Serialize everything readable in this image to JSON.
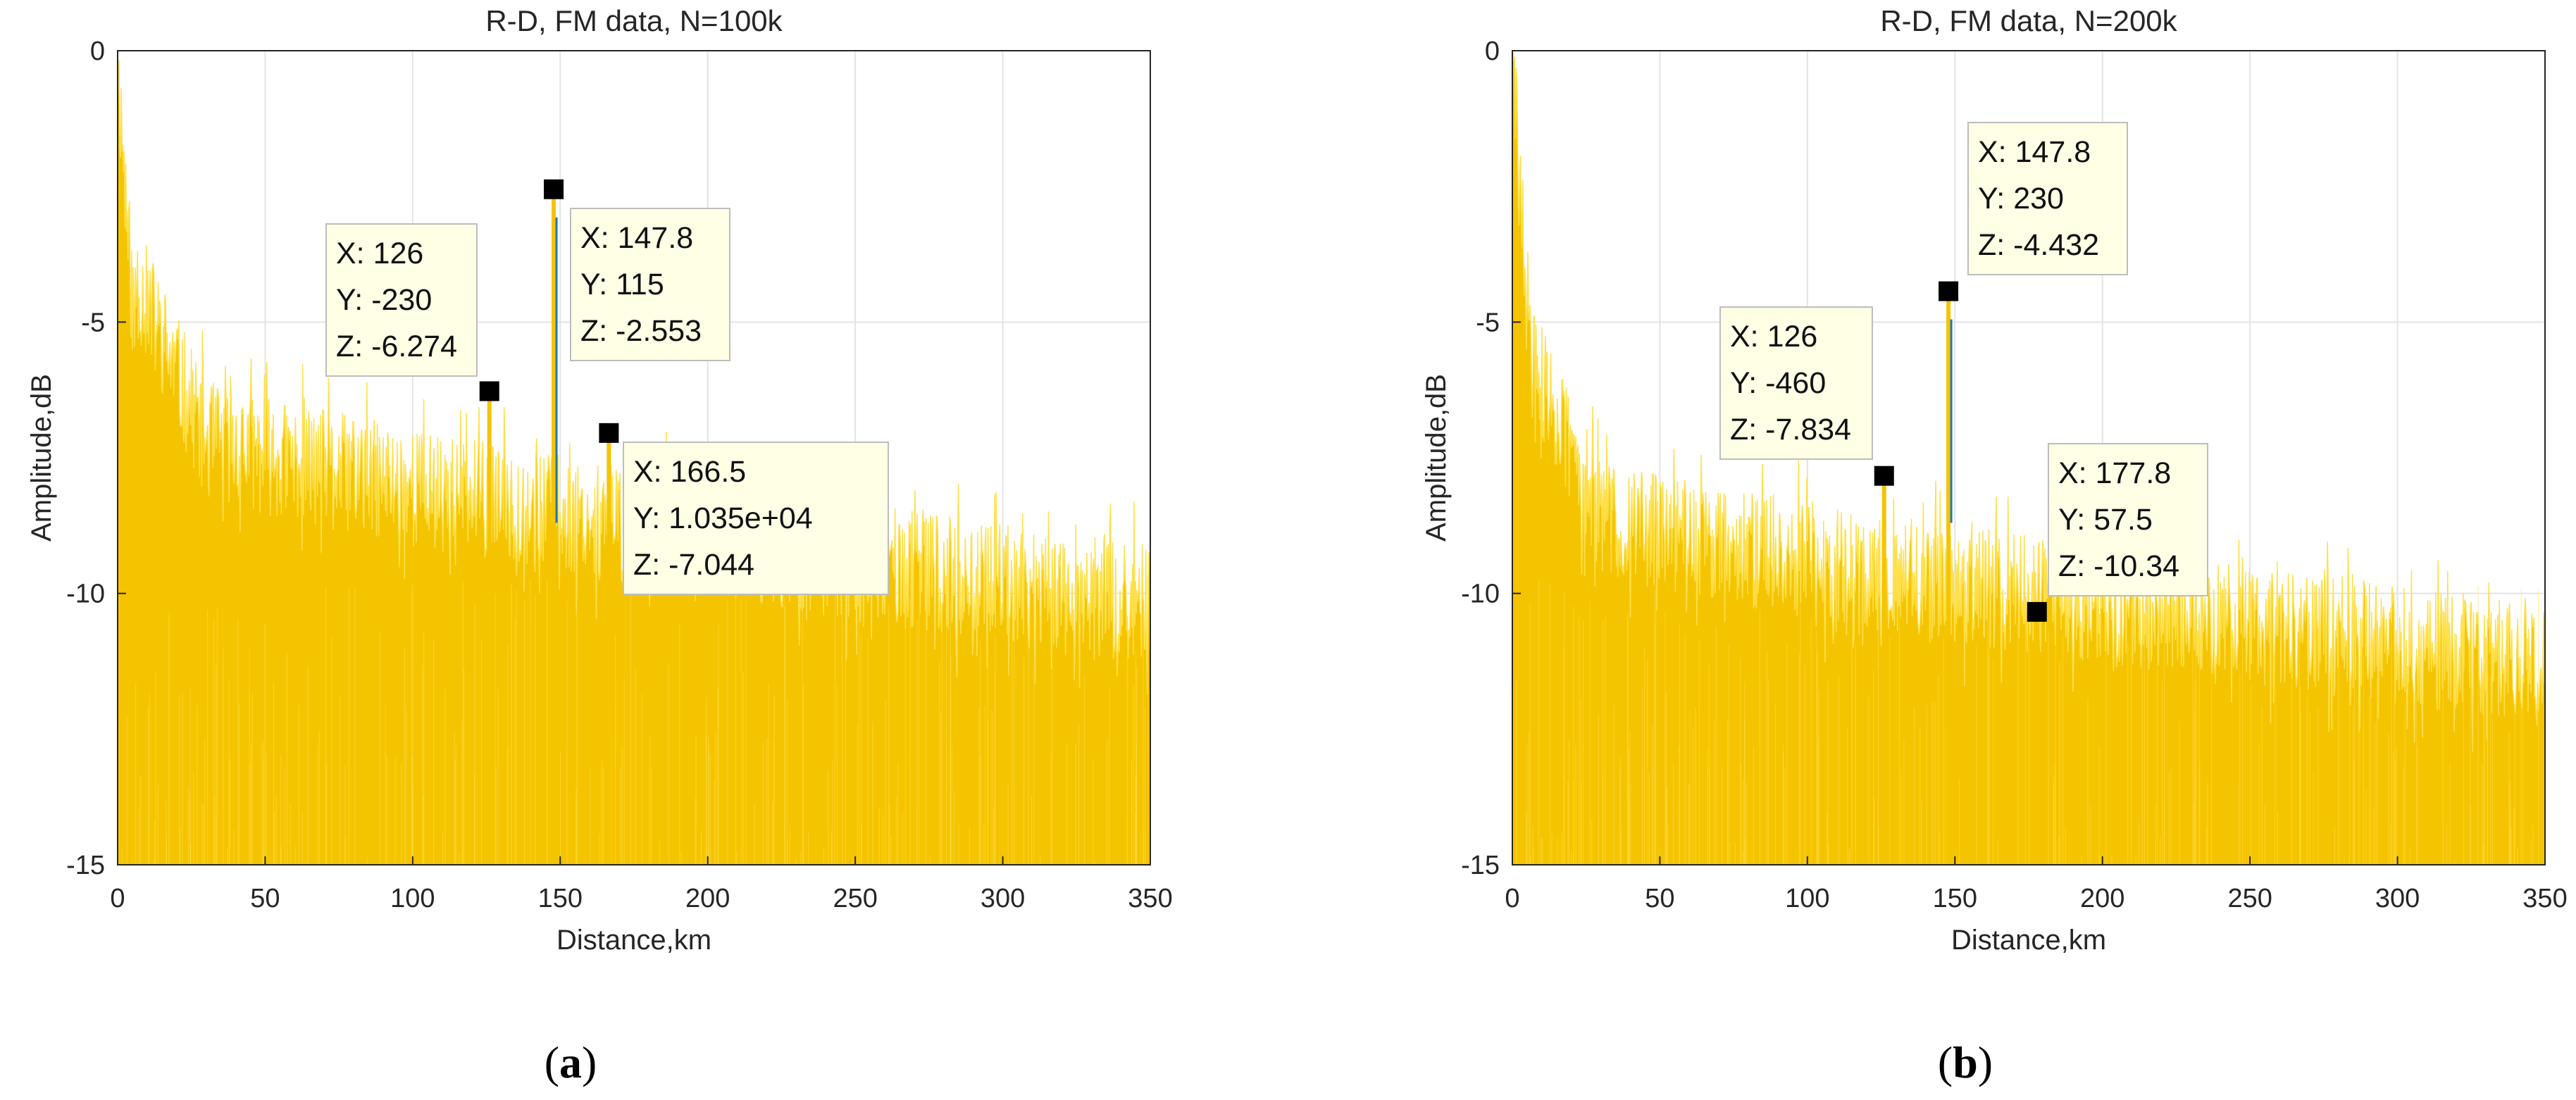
{
  "colors": {
    "signal": "#F5C400",
    "signal_light": "#FFE04A",
    "blue": "#1f77b4",
    "grid": "#e3e3e3",
    "axis": "#262626",
    "tip_bg": "#ffffe6"
  },
  "chart_data": [
    {
      "type": "line",
      "panel_label": "(a)",
      "panel_letter": "a",
      "title": "R-D, FM data, N=100k",
      "xlabel": "Distance,km",
      "ylabel": "Amplitude,dB",
      "xlim": [
        0,
        350
      ],
      "ylim": [
        -15,
        0
      ],
      "x_ticks": [
        "0",
        "50",
        "100",
        "150",
        "200",
        "250",
        "300",
        "350"
      ],
      "y_ticks": [
        "0",
        "-5",
        "-10",
        "-15"
      ],
      "grid": true,
      "noise_floor_db": {
        "start": -6.5,
        "end": -10.2
      },
      "peaks": [
        {
          "x": 126,
          "z": -6.274
        },
        {
          "x": 147.8,
          "z": -2.553
        },
        {
          "x": 166.5,
          "z": -7.044
        }
      ],
      "datatips": [
        {
          "x": "X: 126",
          "y": "Y: -230",
          "z": "Z: -6.274"
        },
        {
          "x": "X: 147.8",
          "y": "Y: 115",
          "z": "Z: -2.553"
        },
        {
          "x": "X: 166.5",
          "y": "Y: 1.035e+04",
          "z": "Z: -7.044"
        }
      ]
    },
    {
      "type": "line",
      "panel_label": "(b)",
      "panel_letter": "b",
      "title": "R-D, FM data, N=200k",
      "xlabel": "Distance,km",
      "ylabel": "Amplitude,dB",
      "xlim": [
        0,
        350
      ],
      "ylim": [
        -15,
        0
      ],
      "x_ticks": [
        "0",
        "50",
        "100",
        "150",
        "200",
        "250",
        "300",
        "350"
      ],
      "y_ticks": [
        "0",
        "-5",
        "-10",
        "-15"
      ],
      "grid": true,
      "noise_floor_db": {
        "start": -8.0,
        "end": -11.3
      },
      "peaks": [
        {
          "x": 126,
          "z": -7.834
        },
        {
          "x": 147.8,
          "z": -4.432
        },
        {
          "x": 177.8,
          "z": -10.34
        }
      ],
      "datatips": [
        {
          "x": "X: 126",
          "y": "Y: -460",
          "z": "Z: -7.834"
        },
        {
          "x": "X: 147.8",
          "y": "Y: 230",
          "z": "Z: -4.432"
        },
        {
          "x": "X: 177.8",
          "y": "Y: 57.5",
          "z": "Z: -10.34"
        }
      ]
    }
  ]
}
